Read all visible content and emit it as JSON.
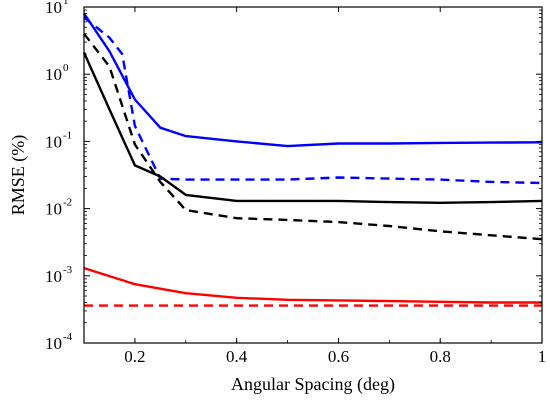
{
  "chart_data": {
    "type": "line",
    "xlabel": "Angular Spacing (deg)",
    "ylabel": "RMSE (%)",
    "xlim": [
      0.1,
      1.0
    ],
    "ylim": [
      0.0001,
      10
    ],
    "yscale": "log",
    "grid": false,
    "legend": "none",
    "x_ticks": [
      {
        "value": 0.2,
        "label": "0.2"
      },
      {
        "value": 0.4,
        "label": "0.4"
      },
      {
        "value": 0.6,
        "label": "0.6"
      },
      {
        "value": 0.8,
        "label": "0.8"
      },
      {
        "value": 1.0,
        "label": "1"
      }
    ],
    "y_ticks": [
      {
        "value": 10,
        "base": "10",
        "exp": "1"
      },
      {
        "value": 1,
        "base": "10",
        "exp": "0"
      },
      {
        "value": 0.1,
        "base": "10",
        "exp": "-1"
      },
      {
        "value": 0.01,
        "base": "10",
        "exp": "-2"
      },
      {
        "value": 0.001,
        "base": "10",
        "exp": "-3"
      },
      {
        "value": 0.0001,
        "base": "10",
        "exp": "-4"
      }
    ],
    "series": [
      {
        "color": "#0000ff",
        "dash": "solid",
        "x": [
          0.1,
          0.15,
          0.2,
          0.25,
          0.3,
          0.4,
          0.5,
          0.6,
          0.7,
          0.8,
          0.9,
          1.0
        ],
        "y": [
          8.0,
          2.2,
          0.42,
          0.16,
          0.12,
          0.1,
          0.085,
          0.093,
          0.093,
          0.095,
          0.096,
          0.097
        ]
      },
      {
        "color": "#0000ff",
        "dash": "dashed",
        "x": [
          0.1,
          0.15,
          0.175,
          0.2,
          0.25,
          0.3,
          0.4,
          0.5,
          0.6,
          0.7,
          0.8,
          0.9,
          1.0
        ],
        "y": [
          7.0,
          3.5,
          2.0,
          0.17,
          0.028,
          0.027,
          0.027,
          0.027,
          0.029,
          0.028,
          0.027,
          0.025,
          0.024
        ]
      },
      {
        "color": "#000000",
        "dash": "solid",
        "x": [
          0.1,
          0.15,
          0.2,
          0.25,
          0.3,
          0.4,
          0.5,
          0.6,
          0.7,
          0.8,
          0.9,
          1.0
        ],
        "y": [
          2.1,
          0.3,
          0.044,
          0.03,
          0.016,
          0.013,
          0.013,
          0.013,
          0.0125,
          0.0122,
          0.0125,
          0.013
        ]
      },
      {
        "color": "#000000",
        "dash": "dashed",
        "x": [
          0.1,
          0.15,
          0.2,
          0.25,
          0.3,
          0.4,
          0.5,
          0.6,
          0.7,
          0.8,
          0.9,
          1.0
        ],
        "y": [
          4.0,
          1.3,
          0.09,
          0.025,
          0.0095,
          0.0072,
          0.0068,
          0.0063,
          0.0055,
          0.0046,
          0.004,
          0.0035
        ]
      },
      {
        "color": "#ff0000",
        "dash": "solid",
        "x": [
          0.1,
          0.2,
          0.3,
          0.4,
          0.5,
          0.6,
          0.7,
          0.8,
          0.9,
          1.0
        ],
        "y": [
          0.0013,
          0.00075,
          0.00055,
          0.00047,
          0.00044,
          0.00043,
          0.00042,
          0.00041,
          0.0004,
          0.0004
        ]
      },
      {
        "color": "#ff0000",
        "dash": "dashed",
        "x": [
          0.1,
          0.2,
          0.3,
          0.4,
          0.5,
          0.6,
          0.7,
          0.8,
          0.9,
          1.0
        ],
        "y": [
          0.00036,
          0.00036,
          0.00036,
          0.00036,
          0.00036,
          0.00036,
          0.00036,
          0.00036,
          0.00036,
          0.00036
        ]
      }
    ]
  }
}
